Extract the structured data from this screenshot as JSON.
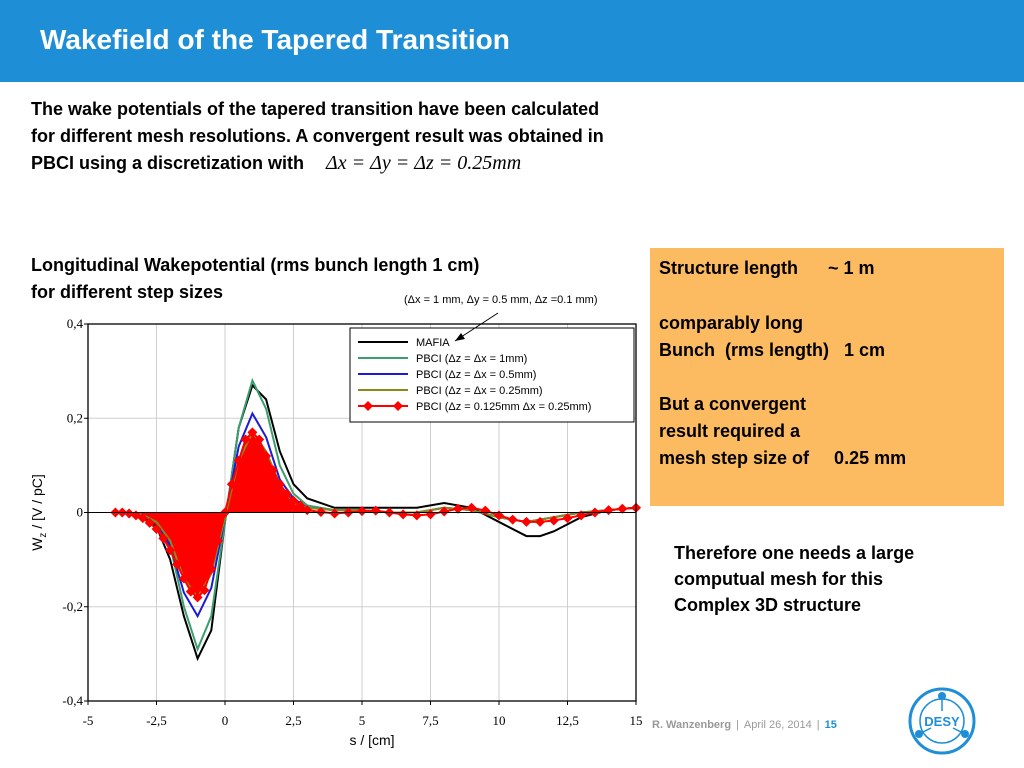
{
  "header": {
    "title": "Wakefield of the Tapered Transition"
  },
  "intro": {
    "line1": "The wake potentials of the tapered transition have been calculated",
    "line2": "for different mesh resolutions. A convergent result was obtained in",
    "line3": "PBCI using a discretization with",
    "formula": "Δx = Δy = Δz = 0.25mm"
  },
  "subhead": {
    "line1": "Longitudinal Wakepotential (rms bunch length 1 cm)",
    "line2": "for different step sizes"
  },
  "note": "(Δx = 1 mm, Δy = 0.5 mm, Δz =0.1 mm)",
  "infobox": {
    "line1": "Structure length      ~ 1 m",
    "line2": "comparably long",
    "line3": "Bunch  (rms length)   1 cm",
    "line4": "But a convergent",
    "line5": "result required a",
    "line6": "mesh step size of     0.25 mm"
  },
  "conclusion": {
    "line1": "Therefore one needs a large",
    "line2": "computual mesh for this",
    "line3": "Complex 3D structure"
  },
  "footer": {
    "author": "R.  Wanzenberg",
    "sep1": "|",
    "date": "April  26,  2014",
    "sep2": "|",
    "page": "15"
  },
  "logo": {
    "text": "DESY"
  },
  "colors": {
    "header": "#1e8fd6",
    "infobox": "#fdbb61",
    "mafia": "#000000",
    "pbci1": "#3a9e6e",
    "pbci05": "#1b1bd6",
    "pbci025": "#8a8a1a",
    "pbci0125": "#ff0000"
  },
  "chart_data": {
    "type": "line",
    "xlabel": "s / [cm]",
    "ylabel_main": "W",
    "ylabel_sub": "z",
    "ylabel_rest": " / [V / pC]",
    "xlim": [
      -5,
      15
    ],
    "ylim": [
      -0.4,
      0.4
    ],
    "x_ticks": [
      -5,
      -2.5,
      0,
      2.5,
      5,
      7.5,
      10,
      12.5,
      15
    ],
    "x_tick_labels": [
      "-5",
      "-2,5",
      "0",
      "2,5",
      "5",
      "7,5",
      "10",
      "12,5",
      "15"
    ],
    "y_ticks": [
      0.4,
      0.2,
      0,
      -0.2,
      -0.4
    ],
    "y_tick_labels": [
      "0,4",
      "0,2",
      "0",
      "-0,2",
      "-0,4"
    ],
    "grid": true,
    "legend_position": "top-right",
    "series": [
      {
        "name": "MAFIA",
        "color": "#000000",
        "x": [
          -3.8,
          -3,
          -2.5,
          -2,
          -1.5,
          -1,
          -0.5,
          0,
          0.5,
          1,
          1.5,
          2,
          2.5,
          3,
          4,
          5,
          6,
          7,
          8,
          9,
          10,
          11,
          11.5,
          12,
          13,
          14,
          15
        ],
        "y": [
          0,
          -0.01,
          -0.03,
          -0.1,
          -0.22,
          -0.31,
          -0.25,
          -0.02,
          0.18,
          0.27,
          0.24,
          0.13,
          0.06,
          0.03,
          0.01,
          0.01,
          0.01,
          0.01,
          0.02,
          0.01,
          -0.02,
          -0.05,
          -0.05,
          -0.04,
          -0.01,
          0.005,
          0.01
        ]
      },
      {
        "name": "PBCI (Δz = Δx = 1mm)",
        "color": "#3a9e6e",
        "x": [
          -3.8,
          -3,
          -2.5,
          -2,
          -1.5,
          -1,
          -0.5,
          0,
          0.5,
          1,
          1.5,
          2,
          2.5,
          3,
          4,
          5,
          6,
          7,
          8,
          9,
          10,
          11,
          12,
          13,
          14,
          15
        ],
        "y": [
          0,
          -0.005,
          -0.02,
          -0.07,
          -0.2,
          -0.29,
          -0.22,
          -0.02,
          0.18,
          0.28,
          0.22,
          0.1,
          0.04,
          0.015,
          0.005,
          0.005,
          0,
          0,
          0.01,
          0.005,
          -0.01,
          -0.02,
          -0.01,
          0,
          0.005,
          0.01
        ]
      },
      {
        "name": "PBCI (Δz = Δx = 0.5mm)",
        "color": "#1b1bd6",
        "x": [
          -3.8,
          -3,
          -2.5,
          -2,
          -1.5,
          -1,
          -0.5,
          0,
          0.5,
          1,
          1.5,
          2,
          2.5,
          3,
          4,
          5,
          6,
          7,
          8,
          9,
          10,
          11,
          12,
          13,
          14,
          15
        ],
        "y": [
          0,
          -0.005,
          -0.02,
          -0.07,
          -0.17,
          -0.22,
          -0.16,
          -0.01,
          0.14,
          0.21,
          0.16,
          0.07,
          0.03,
          0.01,
          0.005,
          0.005,
          0,
          0,
          0.01,
          0.005,
          -0.01,
          -0.02,
          -0.01,
          0,
          0.005,
          0.01
        ]
      },
      {
        "name": "PBCI (Δz = Δx = 0.25mm)",
        "color": "#8a8a1a",
        "x": [
          -3.8,
          -3,
          -2.5,
          -2,
          -1.5,
          -1,
          -0.5,
          0,
          0.5,
          1,
          1.5,
          2,
          2.5,
          3,
          4,
          5,
          6,
          7,
          8,
          9,
          10,
          11,
          12,
          13,
          14,
          15
        ],
        "y": [
          0,
          -0.005,
          -0.02,
          -0.06,
          -0.14,
          -0.18,
          -0.13,
          -0.01,
          0.11,
          0.17,
          0.13,
          0.06,
          0.02,
          0.01,
          0.005,
          0.005,
          0,
          0,
          0.01,
          0.005,
          -0.01,
          -0.02,
          -0.01,
          0,
          0.005,
          0.01
        ]
      },
      {
        "name": "PBCI (Δz = 0.125mm Δx = 0.25mm)",
        "color": "#ff0000",
        "x": [
          -4,
          -3.75,
          -3.5,
          -3.25,
          -3,
          -2.75,
          -2.5,
          -2.25,
          -2,
          -1.75,
          -1.5,
          -1.25,
          -1,
          -0.75,
          -0.5,
          -0.25,
          0,
          0.25,
          0.5,
          0.75,
          1,
          1.25,
          1.5,
          1.75,
          2,
          2.25,
          2.5,
          2.75,
          3,
          3.5,
          4,
          4.5,
          5,
          5.5,
          6,
          6.5,
          7,
          7.5,
          8,
          8.5,
          9,
          9.5,
          10,
          10.5,
          11,
          11.5,
          12,
          12.5,
          13,
          13.5,
          14,
          14.5,
          15
        ],
        "y": [
          0,
          0,
          -0.002,
          -0.006,
          -0.012,
          -0.022,
          -0.035,
          -0.055,
          -0.08,
          -0.11,
          -0.14,
          -0.168,
          -0.18,
          -0.165,
          -0.12,
          -0.06,
          0,
          0.06,
          0.11,
          0.155,
          0.17,
          0.155,
          0.12,
          0.09,
          0.06,
          0.04,
          0.025,
          0.015,
          0.005,
          0.001,
          -0.002,
          0,
          0.003,
          0.004,
          0,
          -0.004,
          -0.006,
          -0.004,
          0.002,
          0.008,
          0.01,
          0.004,
          -0.006,
          -0.015,
          -0.02,
          -0.02,
          -0.017,
          -0.012,
          -0.006,
          0,
          0.005,
          0.008,
          0.01
        ]
      }
    ]
  }
}
